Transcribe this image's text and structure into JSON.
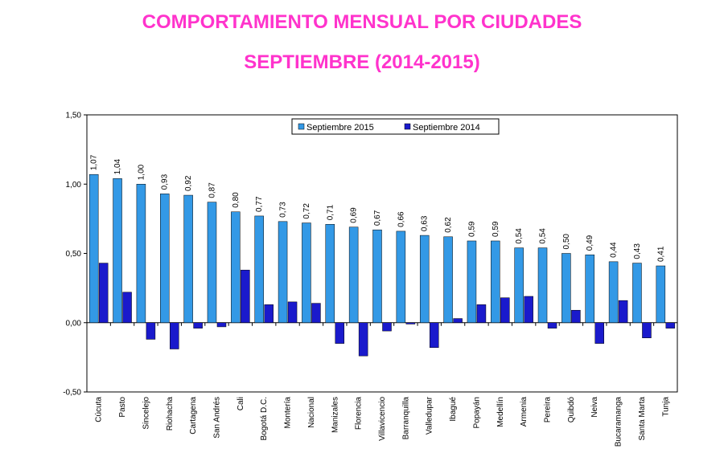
{
  "page": {
    "title_line1": "COMPORTAMIENTO MENSUAL POR CIUDADES",
    "title_line2": "SEPTIEMBRE (2014-2015)"
  },
  "colors": {
    "title": "#ff33cc",
    "series_2015": "#3399e6",
    "series_2014": "#1a1acc"
  },
  "chart_data": {
    "type": "bar",
    "title": "COMPORTAMIENTO MENSUAL POR CIUDADES SEPTIEMBRE (2014-2015)",
    "xlabel": "",
    "ylabel": "",
    "ylim": [
      -0.5,
      1.5
    ],
    "yticks": [
      -0.5,
      0,
      0.5,
      1.0,
      1.5
    ],
    "ytick_labels": [
      "-0,50",
      "0,00",
      "0,50",
      "1,00",
      "1,50"
    ],
    "grid": false,
    "legend_position": "top-center",
    "categories": [
      "Cúcuta",
      "Pasto",
      "Sincelejo",
      "Riohacha",
      "Cartagena",
      "San Andrés",
      "Cali",
      "Bogotá D.C.",
      "Montería",
      "Nacional",
      "Manizales",
      "Florencia",
      "Villavicencio",
      "Barranquilla",
      "Valledupar",
      "Ibagué",
      "Popayán",
      "Medellín",
      "Armenia",
      "Pereira",
      "Quibdó",
      "Neiva",
      "Bucaramanga",
      "Santa Marta",
      "Tunja"
    ],
    "series": [
      {
        "name": "Septiembre 2015",
        "values": [
          1.07,
          1.04,
          1.0,
          0.93,
          0.92,
          0.87,
          0.8,
          0.77,
          0.73,
          0.72,
          0.71,
          0.69,
          0.67,
          0.66,
          0.63,
          0.62,
          0.59,
          0.59,
          0.54,
          0.54,
          0.5,
          0.49,
          0.44,
          0.43,
          0.41
        ],
        "labels": [
          "1,07",
          "1,04",
          "1,00",
          "0,93",
          "0,92",
          "0,87",
          "0,80",
          "0,77",
          "0,73",
          "0,72",
          "0,71",
          "0,69",
          "0,67",
          "0,66",
          "0,63",
          "0,62",
          "0,59",
          "0,59",
          "0,54",
          "0,54",
          "0,50",
          "0,49",
          "0,44",
          "0,43",
          "0,41"
        ]
      },
      {
        "name": "Septiembre 2014",
        "values": [
          0.43,
          0.22,
          -0.12,
          -0.19,
          -0.04,
          -0.03,
          0.38,
          0.13,
          0.15,
          0.14,
          -0.15,
          -0.24,
          -0.06,
          -0.01,
          -0.18,
          0.03,
          0.13,
          0.18,
          0.19,
          -0.04,
          0.09,
          -0.15,
          0.16,
          -0.11,
          -0.04
        ]
      }
    ]
  }
}
